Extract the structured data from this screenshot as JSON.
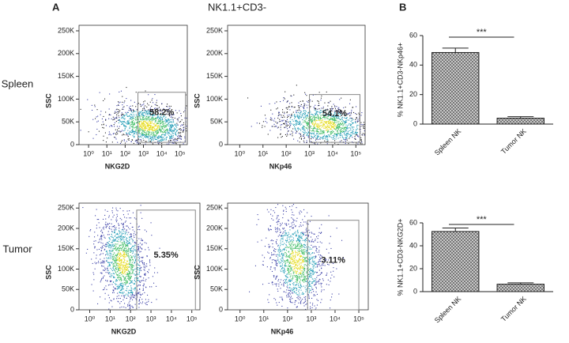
{
  "figure": {
    "panel_a": "A",
    "panel_a_title": "NK1.1+CD3-",
    "panel_b": "B",
    "row_labels": [
      "Spleen",
      "Tumor"
    ]
  },
  "chart_data": [
    {
      "type": "flow",
      "x_label": "NKG2D",
      "y_label": "SSC",
      "xscale": "log",
      "xlim": [
        0.3,
        250000
      ],
      "ylim": [
        0,
        262144
      ],
      "xticks": [
        {
          "value": 1,
          "label": "10⁰"
        },
        {
          "value": 10,
          "label": "10¹"
        },
        {
          "value": 100,
          "label": "10²"
        },
        {
          "value": 1000,
          "label": "10³"
        },
        {
          "value": 10000,
          "label": "10⁴"
        },
        {
          "value": 100000,
          "label": "10⁵"
        }
      ],
      "yticks": [
        0,
        {
          "value": 50000,
          "label": "50K"
        },
        {
          "value": 100000,
          "label": "100K"
        },
        {
          "value": 150000,
          "label": "150K"
        },
        {
          "value": 200000,
          "label": "200K"
        },
        {
          "value": 250000,
          "label": "250K"
        }
      ],
      "gate": [
        500,
        200000,
        5000,
        115000
      ],
      "values": [
        58.2
      ],
      "value_labels": [
        "58.2%"
      ]
    },
    {
      "type": "flow",
      "x_label": "NKp46",
      "y_label": "SSC",
      "xscale": "log",
      "xlim": [
        0.3,
        250000
      ],
      "ylim": [
        0,
        262144
      ],
      "xticks": [
        {
          "value": 1,
          "label": "10⁰"
        },
        {
          "value": 10,
          "label": "10¹"
        },
        {
          "value": 100,
          "label": "10²"
        },
        {
          "value": 1000,
          "label": "10³"
        },
        {
          "value": 10000,
          "label": "10⁴"
        },
        {
          "value": 100000,
          "label": "10⁵"
        }
      ],
      "yticks": [
        0,
        {
          "value": 50000,
          "label": "50K"
        },
        {
          "value": 100000,
          "label": "100K"
        },
        {
          "value": 150000,
          "label": "150K"
        },
        {
          "value": 200000,
          "label": "200K"
        },
        {
          "value": 250000,
          "label": "250K"
        }
      ],
      "gate": [
        1000,
        150000,
        5000,
        110000
      ],
      "values": [
        54.1
      ],
      "value_labels": [
        "54.1%"
      ]
    },
    {
      "type": "flow",
      "x_label": "NKG2D",
      "y_label": "SSC",
      "xscale": "log",
      "xlim": [
        0.3,
        250000
      ],
      "ylim": [
        0,
        262144
      ],
      "xticks": [
        {
          "value": 1,
          "label": "10⁰"
        },
        {
          "value": 10,
          "label": "10¹"
        },
        {
          "value": 100,
          "label": "10²"
        },
        {
          "value": 1000,
          "label": "10³"
        },
        {
          "value": 10000,
          "label": "10⁴"
        },
        {
          "value": 100000,
          "label": "10⁵"
        }
      ],
      "yticks": [
        0,
        {
          "value": 50000,
          "label": "50K"
        },
        {
          "value": 100000,
          "label": "100K"
        },
        {
          "value": 150000,
          "label": "150K"
        },
        {
          "value": 200000,
          "label": "200K"
        },
        {
          "value": 250000,
          "label": "250K"
        }
      ],
      "gate": [
        200,
        150000,
        0,
        245000
      ],
      "values": [
        5.35
      ],
      "value_labels": [
        "5.35%"
      ]
    },
    {
      "type": "flow",
      "x_label": "NKp46",
      "y_label": "SSC",
      "xscale": "log",
      "xlim": [
        0.3,
        250000
      ],
      "ylim": [
        0,
        262144
      ],
      "xticks": [
        {
          "value": 1,
          "label": "10⁰"
        },
        {
          "value": 10,
          "label": "10¹"
        },
        {
          "value": 100,
          "label": "10²"
        },
        {
          "value": 1000,
          "label": "10³"
        },
        {
          "value": 10000,
          "label": "10⁴"
        },
        {
          "value": 100000,
          "label": "10⁵"
        }
      ],
      "yticks": [
        0,
        {
          "value": 50000,
          "label": "50K"
        },
        {
          "value": 100000,
          "label": "100K"
        },
        {
          "value": 150000,
          "label": "150K"
        },
        {
          "value": 200000,
          "label": "200K"
        },
        {
          "value": 250000,
          "label": "250K"
        }
      ],
      "gate": [
        700,
        100000,
        0,
        220000
      ],
      "values": [
        3.11
      ],
      "value_labels": [
        "3.11%"
      ]
    },
    {
      "type": "bar",
      "y_label": "% NK1.1+CD3-NKp46+",
      "categories": [
        "Spleen NK",
        "Tumor NK"
      ],
      "values": [
        48.5,
        4
      ],
      "errors": [
        3,
        1
      ],
      "ylim": [
        0,
        60
      ],
      "yticks": [
        0,
        20,
        40,
        60
      ],
      "annotation": "***"
    },
    {
      "type": "bar",
      "y_label": "% NK1.1+CD3-NKG2D+",
      "categories": [
        "Spleen NK",
        "Tumor NK"
      ],
      "values": [
        52.5,
        6.5
      ],
      "errors": [
        3,
        1.2
      ],
      "ylim": [
        0,
        60
      ],
      "yticks": [
        0,
        20,
        40,
        60
      ],
      "annotation": "***"
    }
  ]
}
